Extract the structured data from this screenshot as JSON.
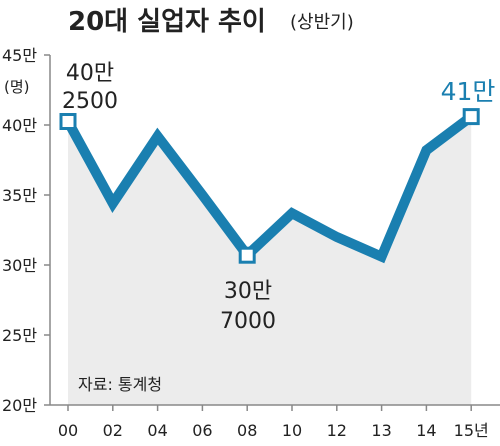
{
  "chart_data": {
    "type": "area",
    "title": "20대 실업자 추이",
    "subtitle": "(상반기)",
    "y_unit_label": "(명)",
    "source": "자료: 통계청",
    "x": [
      "00",
      "02",
      "04",
      "06",
      "08",
      "10",
      "12",
      "13",
      "14",
      "15"
    ],
    "x_tick_labels": [
      "00",
      "02",
      "04",
      "06",
      "08",
      "10",
      "12",
      "13",
      "14",
      "15년"
    ],
    "values": [
      402500,
      344000,
      392000,
      350000,
      307000,
      337000,
      320000,
      306000,
      382000,
      406000
    ],
    "ylim": [
      200000,
      450000
    ],
    "y_ticks": [
      200000,
      250000,
      300000,
      350000,
      400000,
      450000
    ],
    "y_tick_labels": [
      "20만",
      "25만",
      "30만",
      "35만",
      "40만",
      "45만"
    ],
    "annotations": [
      {
        "index": 0,
        "lines": [
          "40만",
          "2500"
        ],
        "style": "normal"
      },
      {
        "index": 4,
        "lines": [
          "30만",
          "7000"
        ],
        "style": "normal"
      },
      {
        "index": 9,
        "lines": [
          "41만"
        ],
        "style": "accent"
      }
    ],
    "marker_indices": [
      0,
      4,
      9
    ],
    "colors": {
      "line": "#1a7fb0",
      "fill": "#ececec",
      "axis": "#888888",
      "marker_fill": "#ffffff"
    },
    "grid": false
  }
}
